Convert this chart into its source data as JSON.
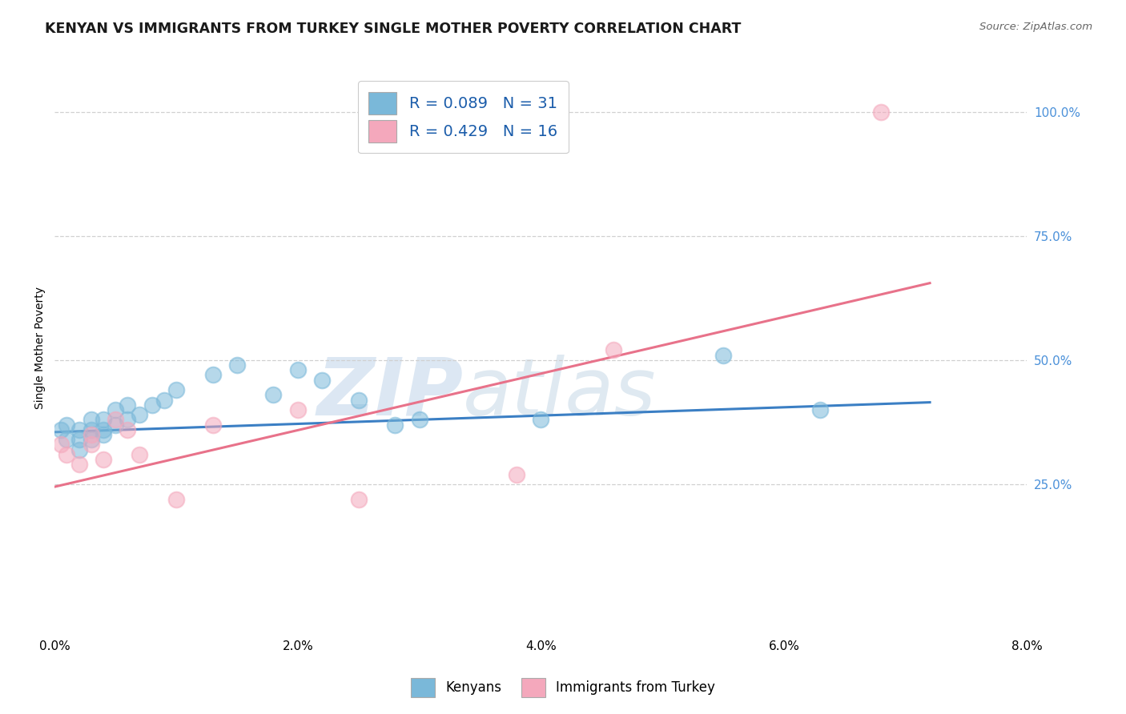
{
  "title": "KENYAN VS IMMIGRANTS FROM TURKEY SINGLE MOTHER POVERTY CORRELATION CHART",
  "source_text": "Source: ZipAtlas.com",
  "ylabel": "Single Mother Poverty",
  "xlim": [
    0.0,
    0.08
  ],
  "ylim": [
    -0.05,
    1.1
  ],
  "xtick_labels": [
    "0.0%",
    "2.0%",
    "4.0%",
    "6.0%",
    "8.0%"
  ],
  "xtick_vals": [
    0.0,
    0.02,
    0.04,
    0.06,
    0.08
  ],
  "ytick_labels": [
    "25.0%",
    "50.0%",
    "75.0%",
    "100.0%"
  ],
  "ytick_vals": [
    0.25,
    0.5,
    0.75,
    1.0
  ],
  "legend_r1": "R = 0.089   N = 31",
  "legend_r2": "R = 0.429   N = 16",
  "legend_label1": "Kenyans",
  "legend_label2": "Immigrants from Turkey",
  "blue_color": "#7ab8d9",
  "pink_color": "#f4a8bc",
  "blue_line_color": "#3b7fc4",
  "pink_line_color": "#e8728a",
  "blue_scatter_x": [
    0.0005,
    0.001,
    0.001,
    0.002,
    0.002,
    0.002,
    0.003,
    0.003,
    0.003,
    0.004,
    0.004,
    0.004,
    0.005,
    0.005,
    0.006,
    0.006,
    0.007,
    0.008,
    0.009,
    0.01,
    0.013,
    0.015,
    0.018,
    0.02,
    0.022,
    0.025,
    0.028,
    0.03,
    0.04,
    0.063,
    0.055
  ],
  "blue_scatter_y": [
    0.36,
    0.34,
    0.37,
    0.36,
    0.34,
    0.32,
    0.36,
    0.38,
    0.34,
    0.35,
    0.38,
    0.36,
    0.37,
    0.4,
    0.38,
    0.41,
    0.39,
    0.41,
    0.42,
    0.44,
    0.47,
    0.49,
    0.43,
    0.48,
    0.46,
    0.42,
    0.37,
    0.38,
    0.38,
    0.4,
    0.51
  ],
  "pink_scatter_x": [
    0.0005,
    0.001,
    0.002,
    0.003,
    0.003,
    0.004,
    0.005,
    0.006,
    0.007,
    0.01,
    0.013,
    0.02,
    0.025,
    0.038,
    0.046,
    0.068
  ],
  "pink_scatter_y": [
    0.33,
    0.31,
    0.29,
    0.33,
    0.35,
    0.3,
    0.38,
    0.36,
    0.31,
    0.22,
    0.37,
    0.4,
    0.22,
    0.27,
    0.52,
    1.0
  ],
  "blue_trendline_x": [
    0.0,
    0.072
  ],
  "blue_trendline_y": [
    0.355,
    0.415
  ],
  "pink_trendline_x": [
    0.0,
    0.072
  ],
  "pink_trendline_y": [
    0.245,
    0.655
  ],
  "watermark_zip": "ZIP",
  "watermark_atlas": "atlas",
  "bg_color": "#ffffff",
  "grid_color": "#d0d0d0",
  "title_fontsize": 12.5,
  "axis_label_fontsize": 10,
  "tick_fontsize": 11,
  "scatter_size": 200,
  "scatter_alpha": 0.55
}
